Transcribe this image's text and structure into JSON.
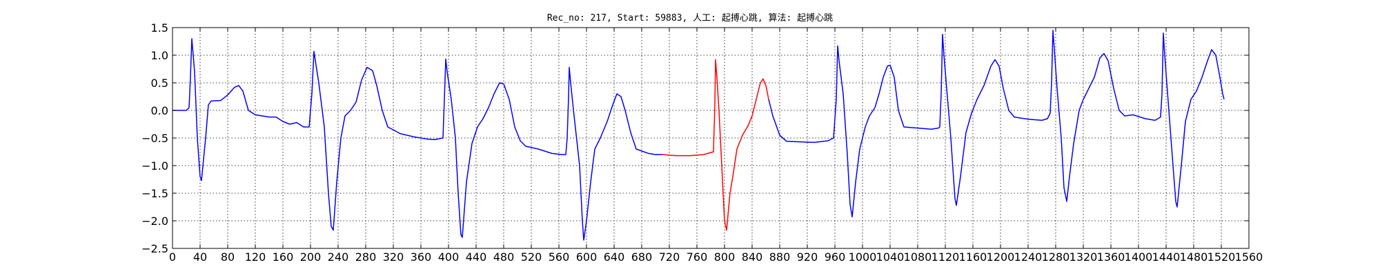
{
  "chart_data": {
    "type": "line",
    "title": "Rec_no: 217, Start: 59883, 人工: 起搏心跳, 算法: 起搏心跳",
    "xlabel": "",
    "ylabel": "",
    "xlim": [
      0,
      1560
    ],
    "ylim": [
      -2.5,
      1.5
    ],
    "grid": true,
    "y_ticks": [
      1.5,
      1.0,
      0.5,
      0.0,
      -0.5,
      -1.0,
      -1.5,
      -2.0,
      -2.5
    ],
    "y_tick_labels": [
      "1.5",
      "1.0",
      "0.5",
      "0.0",
      "−0.5",
      "−1.0",
      "−1.5",
      "−2.0",
      "−2.5"
    ],
    "x_ticks": [
      0,
      40,
      80,
      120,
      160,
      200,
      240,
      280,
      320,
      360,
      400,
      440,
      480,
      520,
      560,
      600,
      640,
      680,
      720,
      760,
      800,
      840,
      880,
      920,
      960,
      1000,
      1040,
      1080,
      1120,
      1160,
      1200,
      1240,
      1280,
      1320,
      1360,
      1400,
      1440,
      1480,
      1520,
      1560
    ],
    "x_tick_labels": [
      "0",
      "40",
      "80",
      "120",
      "160",
      "200",
      "240",
      "280",
      "320",
      "360",
      "400",
      "440",
      "480",
      "520",
      "560",
      "600",
      "640",
      "680",
      "720",
      "760",
      "800",
      "840",
      "880",
      "920",
      "960",
      "1000",
      "1040",
      "1080",
      "1120",
      "1160",
      "1200",
      "1240",
      "1280",
      "1320",
      "1360",
      "1400",
      "1440",
      "1480",
      "1520",
      "1560"
    ],
    "colors": {
      "signal": "#0000ff",
      "highlight": "#ff0000"
    },
    "series": [
      {
        "color": "#0000ff",
        "points": [
          [
            0,
            0.0
          ],
          [
            20,
            0.0
          ],
          [
            24,
            0.05
          ],
          [
            26,
            0.6
          ],
          [
            28,
            1.3
          ],
          [
            30,
            1.0
          ],
          [
            32,
            0.7
          ],
          [
            36,
            -0.5
          ],
          [
            40,
            -1.2
          ],
          [
            42,
            -1.27
          ],
          [
            48,
            -0.5
          ],
          [
            52,
            0.1
          ],
          [
            56,
            0.17
          ],
          [
            70,
            0.18
          ],
          [
            80,
            0.28
          ],
          [
            90,
            0.42
          ],
          [
            96,
            0.45
          ],
          [
            102,
            0.35
          ],
          [
            110,
            0.0
          ],
          [
            120,
            -0.08
          ],
          [
            140,
            -0.12
          ],
          [
            150,
            -0.12
          ],
          [
            160,
            -0.2
          ],
          [
            170,
            -0.25
          ],
          [
            180,
            -0.22
          ],
          [
            190,
            -0.3
          ],
          [
            198,
            -0.3
          ],
          [
            202,
            0.3
          ],
          [
            205,
            1.07
          ],
          [
            207,
            0.9
          ],
          [
            212,
            0.5
          ],
          [
            220,
            -0.3
          ],
          [
            226,
            -1.5
          ],
          [
            230,
            -2.1
          ],
          [
            233,
            -2.17
          ],
          [
            238,
            -1.3
          ],
          [
            244,
            -0.5
          ],
          [
            250,
            -0.1
          ],
          [
            258,
            0.0
          ],
          [
            266,
            0.15
          ],
          [
            274,
            0.55
          ],
          [
            282,
            0.78
          ],
          [
            290,
            0.72
          ],
          [
            296,
            0.45
          ],
          [
            304,
            0.0
          ],
          [
            312,
            -0.3
          ],
          [
            330,
            -0.42
          ],
          [
            350,
            -0.48
          ],
          [
            370,
            -0.52
          ],
          [
            380,
            -0.53
          ],
          [
            392,
            -0.5
          ],
          [
            394,
            0.2
          ],
          [
            396,
            0.93
          ],
          [
            398,
            0.7
          ],
          [
            404,
            0.2
          ],
          [
            410,
            -0.5
          ],
          [
            414,
            -1.5
          ],
          [
            418,
            -2.25
          ],
          [
            420,
            -2.3
          ],
          [
            426,
            -1.3
          ],
          [
            434,
            -0.6
          ],
          [
            442,
            -0.3
          ],
          [
            450,
            -0.15
          ],
          [
            458,
            0.05
          ],
          [
            466,
            0.3
          ],
          [
            474,
            0.5
          ],
          [
            480,
            0.48
          ],
          [
            488,
            0.2
          ],
          [
            496,
            -0.3
          ],
          [
            504,
            -0.55
          ],
          [
            512,
            -0.65
          ],
          [
            530,
            -0.7
          ],
          [
            550,
            -0.78
          ],
          [
            564,
            -0.8
          ],
          [
            570,
            -0.8
          ],
          [
            572,
            -0.5
          ],
          [
            574,
            0.25
          ],
          [
            575,
            0.78
          ],
          [
            577,
            0.5
          ],
          [
            582,
            -0.1
          ],
          [
            590,
            -1.0
          ],
          [
            594,
            -2.0
          ],
          [
            596,
            -2.35
          ],
          [
            600,
            -2.0
          ],
          [
            606,
            -1.3
          ],
          [
            612,
            -0.7
          ],
          [
            620,
            -0.5
          ],
          [
            630,
            -0.2
          ],
          [
            638,
            0.1
          ],
          [
            644,
            0.3
          ],
          [
            650,
            0.25
          ],
          [
            656,
            0.0
          ],
          [
            664,
            -0.4
          ],
          [
            672,
            -0.7
          ],
          [
            690,
            -0.78
          ],
          [
            700,
            -0.8
          ],
          [
            710,
            -0.8
          ]
        ]
      },
      {
        "color": "#ff0000",
        "points": [
          [
            710,
            -0.8
          ],
          [
            730,
            -0.82
          ],
          [
            750,
            -0.82
          ],
          [
            770,
            -0.8
          ],
          [
            784,
            -0.75
          ],
          [
            786,
            0.1
          ],
          [
            787,
            0.92
          ],
          [
            789,
            0.6
          ],
          [
            792,
            0.0
          ],
          [
            796,
            -1.0
          ],
          [
            800,
            -2.0
          ],
          [
            803,
            -2.17
          ],
          [
            808,
            -1.5
          ],
          [
            812,
            -1.2
          ],
          [
            818,
            -0.7
          ],
          [
            826,
            -0.45
          ],
          [
            834,
            -0.28
          ],
          [
            840,
            -0.1
          ],
          [
            846,
            0.2
          ],
          [
            852,
            0.5
          ],
          [
            856,
            0.57
          ],
          [
            860,
            0.45
          ],
          [
            864,
            0.2
          ]
        ]
      },
      {
        "color": "#0000ff",
        "points": [
          [
            864,
            0.2
          ],
          [
            870,
            -0.1
          ],
          [
            880,
            -0.45
          ],
          [
            890,
            -0.56
          ],
          [
            910,
            -0.57
          ],
          [
            930,
            -0.58
          ],
          [
            950,
            -0.55
          ],
          [
            958,
            -0.5
          ],
          [
            962,
            0.2
          ],
          [
            964,
            1.17
          ],
          [
            966,
            0.9
          ],
          [
            972,
            0.3
          ],
          [
            978,
            -0.8
          ],
          [
            982,
            -1.7
          ],
          [
            985,
            -1.93
          ],
          [
            990,
            -1.3
          ],
          [
            996,
            -0.7
          ],
          [
            1004,
            -0.3
          ],
          [
            1010,
            -0.1
          ],
          [
            1018,
            0.05
          ],
          [
            1024,
            0.3
          ],
          [
            1030,
            0.6
          ],
          [
            1036,
            0.8
          ],
          [
            1040,
            0.82
          ],
          [
            1046,
            0.6
          ],
          [
            1052,
            0.0
          ],
          [
            1060,
            -0.3
          ],
          [
            1080,
            -0.32
          ],
          [
            1100,
            -0.34
          ],
          [
            1110,
            -0.32
          ],
          [
            1112,
            -0.3
          ],
          [
            1114,
            0.3
          ],
          [
            1116,
            1.38
          ],
          [
            1118,
            1.0
          ],
          [
            1122,
            0.4
          ],
          [
            1128,
            -0.5
          ],
          [
            1134,
            -1.6
          ],
          [
            1136,
            -1.72
          ],
          [
            1142,
            -1.2
          ],
          [
            1150,
            -0.4
          ],
          [
            1158,
            -0.05
          ],
          [
            1166,
            0.2
          ],
          [
            1176,
            0.45
          ],
          [
            1186,
            0.8
          ],
          [
            1192,
            0.92
          ],
          [
            1198,
            0.8
          ],
          [
            1204,
            0.4
          ],
          [
            1212,
            0.0
          ],
          [
            1220,
            -0.12
          ],
          [
            1240,
            -0.16
          ],
          [
            1260,
            -0.18
          ],
          [
            1268,
            -0.15
          ],
          [
            1272,
            -0.05
          ],
          [
            1274,
            0.5
          ],
          [
            1276,
            1.45
          ],
          [
            1278,
            1.1
          ],
          [
            1282,
            0.4
          ],
          [
            1288,
            -0.5
          ],
          [
            1292,
            -1.4
          ],
          [
            1296,
            -1.65
          ],
          [
            1300,
            -1.2
          ],
          [
            1306,
            -0.6
          ],
          [
            1314,
            0.0
          ],
          [
            1320,
            0.2
          ],
          [
            1328,
            0.4
          ],
          [
            1336,
            0.6
          ],
          [
            1344,
            0.95
          ],
          [
            1350,
            1.03
          ],
          [
            1356,
            0.9
          ],
          [
            1364,
            0.4
          ],
          [
            1372,
            0.0
          ],
          [
            1380,
            -0.1
          ],
          [
            1392,
            -0.08
          ],
          [
            1410,
            -0.15
          ],
          [
            1424,
            -0.18
          ],
          [
            1432,
            -0.12
          ],
          [
            1434,
            0.3
          ],
          [
            1436,
            1.4
          ],
          [
            1438,
            1.0
          ],
          [
            1444,
            0.0
          ],
          [
            1450,
            -1.0
          ],
          [
            1454,
            -1.65
          ],
          [
            1456,
            -1.75
          ],
          [
            1462,
            -1.0
          ],
          [
            1468,
            -0.2
          ],
          [
            1476,
            0.2
          ],
          [
            1484,
            0.35
          ],
          [
            1492,
            0.6
          ],
          [
            1500,
            0.9
          ],
          [
            1506,
            1.1
          ],
          [
            1512,
            1.0
          ],
          [
            1518,
            0.6
          ],
          [
            1522,
            0.3
          ],
          [
            1524,
            0.2
          ]
        ]
      }
    ]
  }
}
